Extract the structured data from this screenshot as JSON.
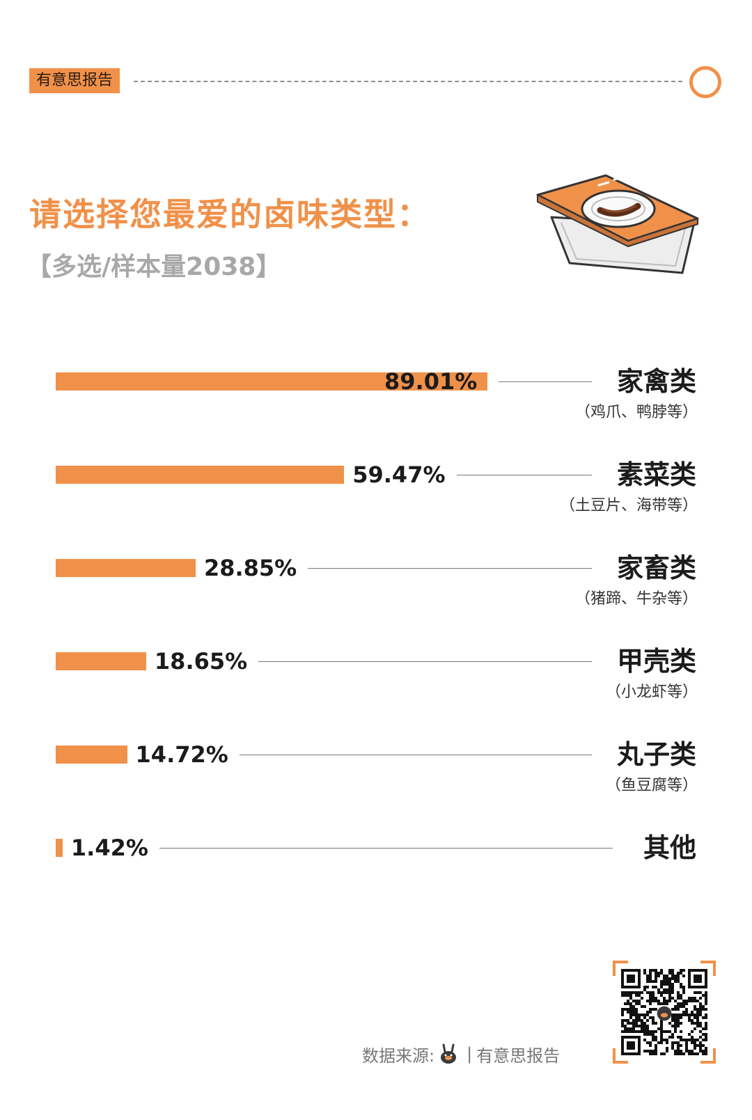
{
  "header": {
    "brand": "有意思报告",
    "title": "请选择您最爱的卤味类型：",
    "subtitle": "【多选/样本量2038】"
  },
  "colors": {
    "accent": "#f0914a",
    "text": "#1b1b1b",
    "muted": "#a8a8a8"
  },
  "chart_data": {
    "type": "bar",
    "orientation": "horizontal",
    "xlim": [
      0,
      100
    ],
    "categories": [
      "家禽类",
      "素菜类",
      "家畜类",
      "甲壳类",
      "丸子类",
      "其他"
    ],
    "subcategories": [
      "（鸡爪、鸭脖等）",
      "（土豆片、海带等）",
      "（猪蹄、牛杂等）",
      "（小龙虾等）",
      "（鱼豆腐等）",
      ""
    ],
    "values": [
      89.01,
      59.47,
      28.85,
      18.65,
      14.72,
      1.42
    ],
    "value_labels": [
      "89.01%",
      "59.47%",
      "28.85%",
      "18.65%",
      "14.72%",
      "1.42%"
    ]
  },
  "footer": {
    "source_label": "数据来源:",
    "source_name": "有意思报告",
    "separator": "|"
  },
  "icons": [
    "food-tray-icon",
    "mascot-icon",
    "qr-code"
  ]
}
